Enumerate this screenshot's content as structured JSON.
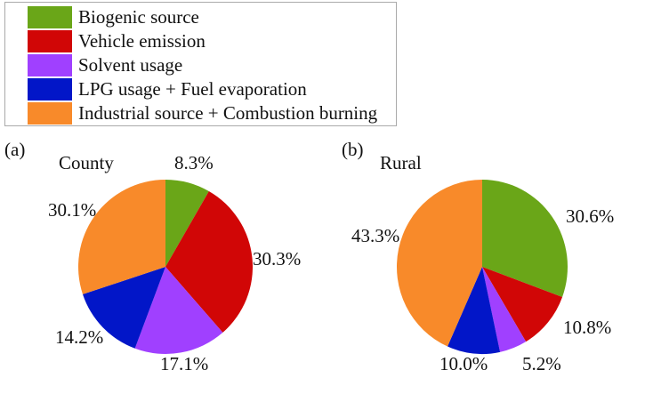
{
  "chart_data": {
    "type": "pie",
    "legend": {
      "placement": "top-left",
      "entries": [
        {
          "label": "Biogenic source",
          "color": "#6aa618"
        },
        {
          "label": "Vehicle emission",
          "color": "#d10606"
        },
        {
          "label": "Solvent usage",
          "color": "#a040ff"
        },
        {
          "label": "LPG usage + Fuel evaporation",
          "color": "#0216c8"
        },
        {
          "label": "Industrial source + Combustion burning",
          "color": "#f88a2a"
        }
      ]
    },
    "panels": [
      {
        "panel_label": "(a)",
        "title": "County",
        "values": [
          8.3,
          30.3,
          17.1,
          14.2,
          30.1
        ],
        "labels": [
          "8.3%",
          "30.3%",
          "17.1%",
          "14.2%",
          "30.1%"
        ]
      },
      {
        "panel_label": "(b)",
        "title": "Rural",
        "values": [
          30.6,
          10.8,
          5.2,
          10.0,
          43.3
        ],
        "labels": [
          "30.6%",
          "10.8%",
          "5.2%",
          "10.0%",
          "43.3%"
        ]
      }
    ]
  }
}
